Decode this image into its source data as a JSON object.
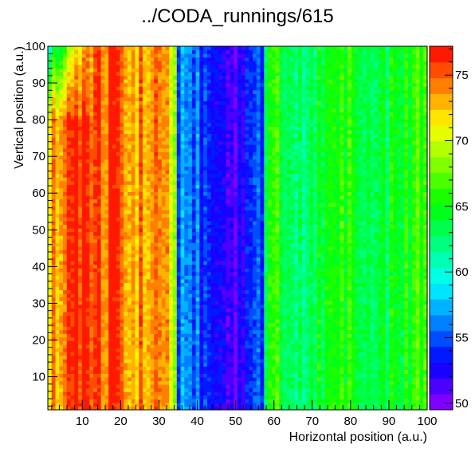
{
  "chart_data": {
    "type": "heatmap",
    "title": "../CODA_runnings/615",
    "xlabel": "Horizontal position (a.u.)",
    "ylabel": "Vertical position (a.u.)",
    "xlim": [
      1,
      100
    ],
    "ylim": [
      1,
      100
    ],
    "zlim": [
      49.5,
      77.2
    ],
    "x_ticks": [
      10,
      20,
      30,
      40,
      50,
      60,
      70,
      80,
      90,
      100
    ],
    "y_ticks": [
      10,
      20,
      30,
      40,
      50,
      60,
      70,
      80,
      90,
      100
    ],
    "z_ticks": [
      50,
      55,
      60,
      65,
      70,
      75
    ],
    "palette": [
      "#7f00ff",
      "#4c00ff",
      "#1900ff",
      "#0019ff",
      "#004cff",
      "#007fff",
      "#00b2ff",
      "#00e5ff",
      "#00ffe5",
      "#00ffb2",
      "#00ff7f",
      "#00ff4c",
      "#00ff19",
      "#19ff00",
      "#4cff00",
      "#7fff00",
      "#b2ff00",
      "#e5ff00",
      "#ffe500",
      "#ffb200",
      "#ff7f00",
      "#ff4c00",
      "#ff1900"
    ],
    "column_profile": {
      "x": [
        1,
        5,
        10,
        15,
        20,
        22,
        25,
        30,
        33,
        34,
        35,
        37,
        40,
        45,
        50,
        55,
        57,
        58,
        60,
        65,
        70,
        75,
        80,
        85,
        90,
        95,
        100
      ],
      "value": [
        73,
        75,
        75.5,
        75.5,
        75,
        73.5,
        73.5,
        73,
        72,
        70,
        56,
        58,
        55,
        52,
        52,
        56,
        55,
        62,
        66,
        61,
        64,
        65,
        66,
        63,
        64,
        65,
        67
      ]
    },
    "grid": false
  }
}
